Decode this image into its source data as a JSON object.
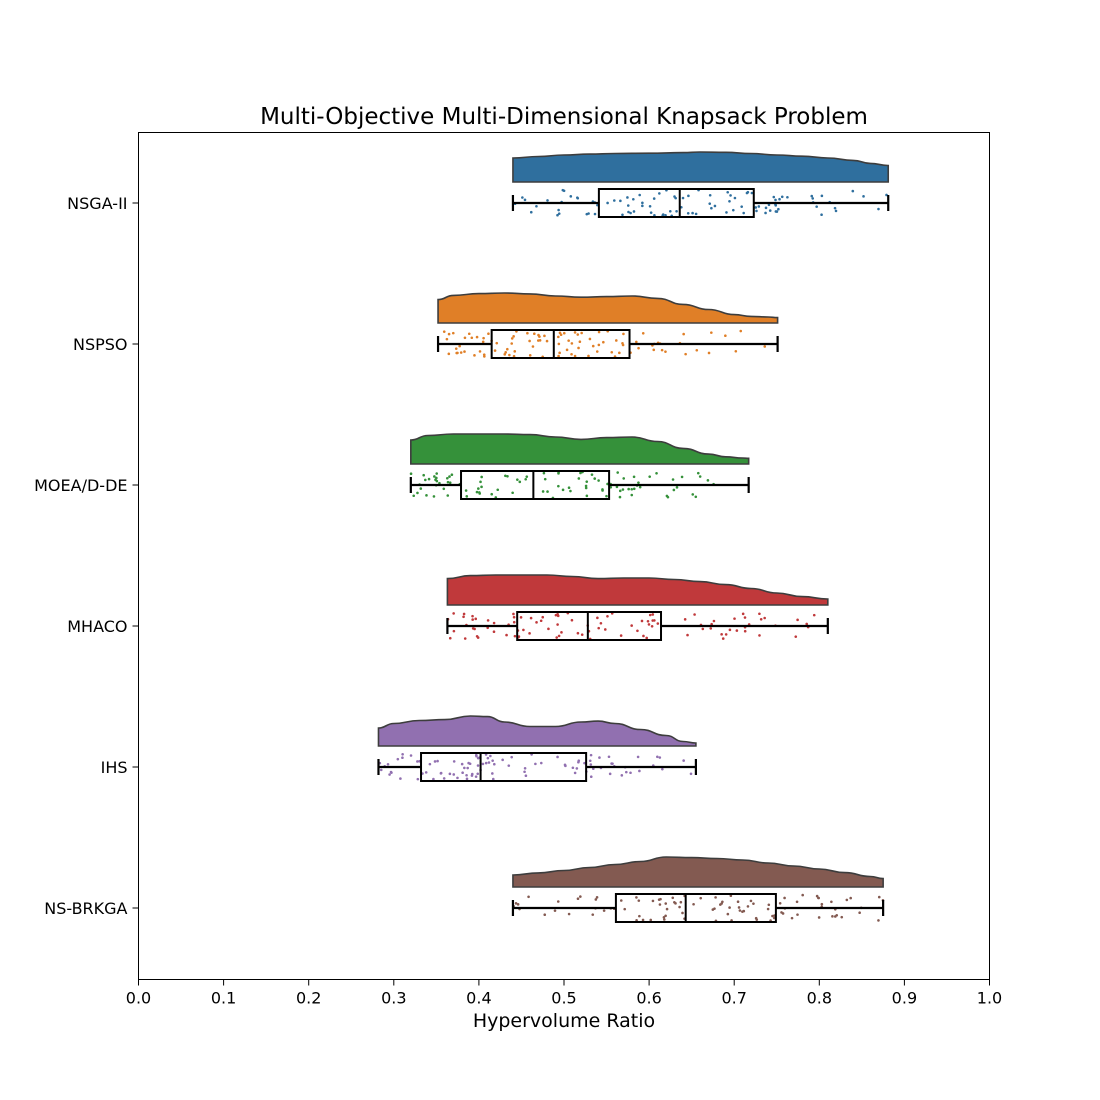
{
  "chart_data": {
    "type": "raincloud",
    "title": "Multi-Objective Multi-Dimensional Knapsack Problem",
    "xlabel": "Hypervolume Ratio",
    "ylabel": "",
    "xlim": [
      0.0,
      1.0
    ],
    "xticks": [
      "0.0",
      "0.1",
      "0.2",
      "0.3",
      "0.4",
      "0.5",
      "0.6",
      "0.7",
      "0.8",
      "0.9",
      "1.0"
    ],
    "grid": false,
    "legend": "none",
    "series": [
      {
        "name": "NSGA-II",
        "color": "#2f6f9e",
        "whisker_low": 0.44,
        "q1": 0.541,
        "median": 0.636,
        "q3": 0.723,
        "whisker_high": 0.881,
        "density": [
          [
            0.44,
            0.8
          ],
          [
            0.47,
            0.85
          ],
          [
            0.5,
            0.9
          ],
          [
            0.53,
            0.93
          ],
          [
            0.56,
            0.95
          ],
          [
            0.6,
            0.96
          ],
          [
            0.64,
            0.98
          ],
          [
            0.66,
            1.0
          ],
          [
            0.69,
            0.99
          ],
          [
            0.72,
            0.95
          ],
          [
            0.75,
            0.9
          ],
          [
            0.78,
            0.86
          ],
          [
            0.81,
            0.8
          ],
          [
            0.84,
            0.72
          ],
          [
            0.86,
            0.62
          ],
          [
            0.881,
            0.55
          ]
        ]
      },
      {
        "name": "NSPSO",
        "color": "#e07f27",
        "whisker_low": 0.352,
        "q1": 0.415,
        "median": 0.488,
        "q3": 0.577,
        "whisker_high": 0.751,
        "density": [
          [
            0.352,
            0.78
          ],
          [
            0.37,
            0.92
          ],
          [
            0.4,
            0.98
          ],
          [
            0.43,
            1.0
          ],
          [
            0.46,
            0.97
          ],
          [
            0.49,
            0.9
          ],
          [
            0.52,
            0.86
          ],
          [
            0.55,
            0.88
          ],
          [
            0.58,
            0.9
          ],
          [
            0.61,
            0.82
          ],
          [
            0.64,
            0.62
          ],
          [
            0.67,
            0.45
          ],
          [
            0.7,
            0.28
          ],
          [
            0.72,
            0.22
          ],
          [
            0.74,
            0.2
          ],
          [
            0.751,
            0.18
          ]
        ]
      },
      {
        "name": "MOEA/D-DE",
        "color": "#35913a",
        "whisker_low": 0.32,
        "q1": 0.379,
        "median": 0.464,
        "q3": 0.553,
        "whisker_high": 0.717,
        "density": [
          [
            0.32,
            0.8
          ],
          [
            0.34,
            0.95
          ],
          [
            0.37,
            1.0
          ],
          [
            0.4,
            1.0
          ],
          [
            0.43,
            1.0
          ],
          [
            0.46,
            0.98
          ],
          [
            0.49,
            0.9
          ],
          [
            0.52,
            0.82
          ],
          [
            0.55,
            0.88
          ],
          [
            0.58,
            0.9
          ],
          [
            0.61,
            0.75
          ],
          [
            0.64,
            0.52
          ],
          [
            0.67,
            0.33
          ],
          [
            0.69,
            0.24
          ],
          [
            0.71,
            0.2
          ],
          [
            0.717,
            0.19
          ]
        ]
      },
      {
        "name": "MHACO",
        "color": "#c0393b",
        "whisker_low": 0.363,
        "q1": 0.445,
        "median": 0.528,
        "q3": 0.614,
        "whisker_high": 0.81,
        "density": [
          [
            0.363,
            0.88
          ],
          [
            0.39,
            0.98
          ],
          [
            0.42,
            1.0
          ],
          [
            0.45,
            1.0
          ],
          [
            0.48,
            1.0
          ],
          [
            0.51,
            0.95
          ],
          [
            0.54,
            0.88
          ],
          [
            0.57,
            0.9
          ],
          [
            0.6,
            0.9
          ],
          [
            0.63,
            0.85
          ],
          [
            0.66,
            0.78
          ],
          [
            0.69,
            0.68
          ],
          [
            0.72,
            0.55
          ],
          [
            0.75,
            0.4
          ],
          [
            0.78,
            0.28
          ],
          [
            0.81,
            0.2
          ]
        ]
      },
      {
        "name": "IHS",
        "color": "#9170b0",
        "whisker_low": 0.282,
        "q1": 0.332,
        "median": 0.402,
        "q3": 0.526,
        "whisker_high": 0.655,
        "density": [
          [
            0.282,
            0.6
          ],
          [
            0.3,
            0.75
          ],
          [
            0.33,
            0.85
          ],
          [
            0.36,
            0.88
          ],
          [
            0.39,
            1.0
          ],
          [
            0.41,
            0.98
          ],
          [
            0.43,
            0.8
          ],
          [
            0.46,
            0.65
          ],
          [
            0.49,
            0.65
          ],
          [
            0.52,
            0.8
          ],
          [
            0.54,
            0.83
          ],
          [
            0.56,
            0.75
          ],
          [
            0.59,
            0.55
          ],
          [
            0.62,
            0.35
          ],
          [
            0.64,
            0.15
          ],
          [
            0.655,
            0.1
          ]
        ]
      },
      {
        "name": "NS-BRKGA",
        "color": "#835a51",
        "whisker_low": 0.44,
        "q1": 0.561,
        "median": 0.643,
        "q3": 0.749,
        "whisker_high": 0.875,
        "density": [
          [
            0.44,
            0.4
          ],
          [
            0.47,
            0.47
          ],
          [
            0.5,
            0.55
          ],
          [
            0.53,
            0.65
          ],
          [
            0.56,
            0.75
          ],
          [
            0.59,
            0.85
          ],
          [
            0.62,
            1.0
          ],
          [
            0.65,
            0.98
          ],
          [
            0.68,
            0.95
          ],
          [
            0.71,
            0.9
          ],
          [
            0.74,
            0.8
          ],
          [
            0.77,
            0.7
          ],
          [
            0.8,
            0.6
          ],
          [
            0.83,
            0.48
          ],
          [
            0.86,
            0.35
          ],
          [
            0.875,
            0.28
          ]
        ]
      }
    ]
  }
}
